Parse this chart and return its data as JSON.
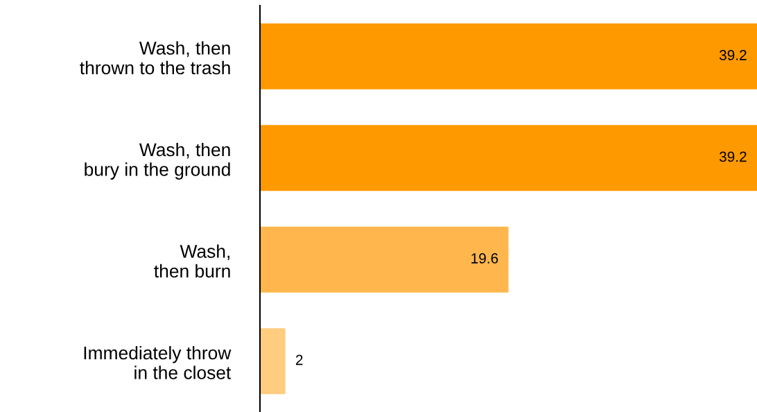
{
  "chart_data": {
    "type": "bar",
    "orientation": "horizontal",
    "categories": [
      "Wash, then\nthrown to the trash",
      "Wash, then\nbury in the ground",
      "Wash,\nthen burn",
      "Immediately throw\nin the closet"
    ],
    "values": [
      39.2,
      39.2,
      19.6,
      2
    ],
    "colors": [
      "#fe9900",
      "#fe9900",
      "#ffb74d",
      "#ffcc80"
    ],
    "xlim": [
      0,
      39.2
    ],
    "data_labels": true,
    "tick_labels": "y",
    "grid": false,
    "legend": false
  }
}
